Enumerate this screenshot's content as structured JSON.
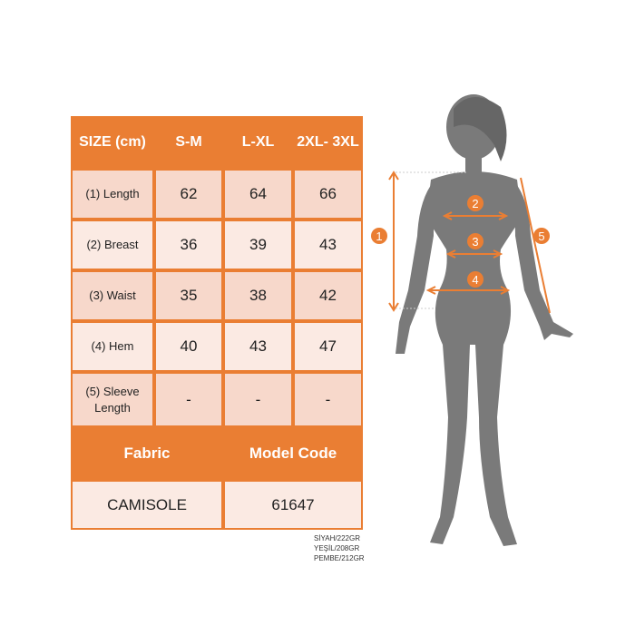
{
  "colors": {
    "accent": "#ea7e33",
    "row_dark": "#f7d8cb",
    "row_light": "#fbeae3",
    "silhouette": "#7a7a7a"
  },
  "table": {
    "header": [
      "SIZE (cm)",
      "S-M",
      "L-XL",
      "2XL- 3XL"
    ],
    "rows": [
      {
        "label": "(1) Length",
        "values": [
          "62",
          "64",
          "66"
        ]
      },
      {
        "label": "(2) Breast",
        "values": [
          "36",
          "39",
          "43"
        ]
      },
      {
        "label": "(3) Waist",
        "values": [
          "35",
          "38",
          "42"
        ]
      },
      {
        "label": "(4) Hem",
        "values": [
          "40",
          "43",
          "47"
        ]
      },
      {
        "label": "(5) Sleeve Length",
        "values": [
          "-",
          "-",
          "-"
        ]
      }
    ],
    "fabric_label": "Fabric",
    "model_code_label": "Model Code",
    "fabric_value": "CAMISOLE",
    "model_code_value": "61647"
  },
  "notes": [
    "SİYAH/222GR",
    "YEŞİL/208GR",
    "PEMBE/212GR"
  ],
  "figure": {
    "markers": [
      "1",
      "2",
      "3",
      "4",
      "5"
    ]
  }
}
